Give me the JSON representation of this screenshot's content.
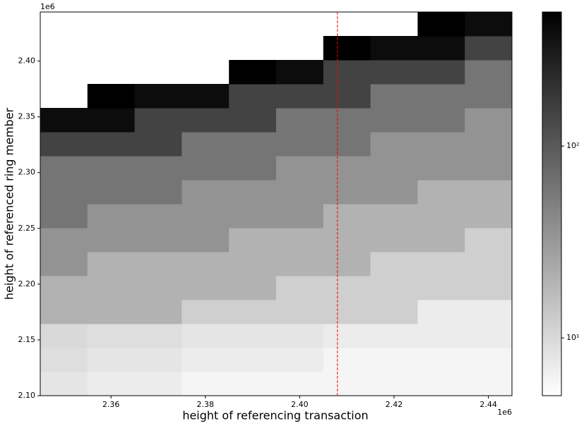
{
  "chart_data": {
    "type": "heatmap",
    "xlabel": "height of referencing transaction",
    "ylabel": "height of referenced ring member",
    "x_offset": "1e6",
    "y_offset": "1e6",
    "xlim": [
      2345000,
      2445000
    ],
    "ylim": [
      2100000,
      2444000
    ],
    "xticks": [
      {
        "value": 2360000,
        "label": "2.36"
      },
      {
        "value": 2380000,
        "label": "2.38"
      },
      {
        "value": 2400000,
        "label": "2.40"
      },
      {
        "value": 2420000,
        "label": "2.42"
      },
      {
        "value": 2440000,
        "label": "2.44"
      }
    ],
    "yticks": [
      {
        "value": 2100000,
        "label": "2.10"
      },
      {
        "value": 2150000,
        "label": "2.15"
      },
      {
        "value": 2200000,
        "label": "2.20"
      },
      {
        "value": 2250000,
        "label": "2.25"
      },
      {
        "value": 2300000,
        "label": "2.30"
      },
      {
        "value": 2350000,
        "label": "2.35"
      },
      {
        "value": 2400000,
        "label": "2.40"
      }
    ],
    "x_bins": [
      2345000,
      2355000,
      2365000,
      2375000,
      2385000,
      2395000,
      2405000,
      2415000,
      2425000,
      2435000,
      2445000
    ],
    "y_bins": [
      2100000,
      2121500,
      2143000,
      2164500,
      2186000,
      2207500,
      2229000,
      2250500,
      2272000,
      2293500,
      2315000,
      2336500,
      2358000,
      2379500,
      2401000,
      2422500,
      2444000
    ],
    "z": [
      [
        8,
        7,
        7,
        6,
        6,
        6,
        6,
        6,
        6,
        6
      ],
      [
        9,
        8,
        8,
        7,
        7,
        7,
        6,
        6,
        6,
        6
      ],
      [
        10,
        9,
        9,
        8,
        8,
        8,
        7,
        7,
        7,
        7
      ],
      [
        20,
        20,
        20,
        12,
        12,
        12,
        12,
        12,
        7,
        7
      ],
      [
        20,
        20,
        20,
        20,
        20,
        12,
        12,
        12,
        12,
        12
      ],
      [
        35,
        20,
        20,
        20,
        20,
        20,
        20,
        12,
        12,
        12
      ],
      [
        35,
        35,
        35,
        35,
        20,
        20,
        20,
        20,
        20,
        12
      ],
      [
        60,
        35,
        35,
        35,
        35,
        35,
        20,
        20,
        20,
        20
      ],
      [
        60,
        60,
        60,
        35,
        35,
        35,
        35,
        35,
        20,
        20
      ],
      [
        60,
        60,
        60,
        60,
        60,
        35,
        35,
        35,
        35,
        35
      ],
      [
        150,
        150,
        150,
        60,
        60,
        60,
        60,
        35,
        35,
        35
      ],
      [
        400,
        400,
        150,
        150,
        150,
        60,
        60,
        60,
        60,
        35
      ],
      [
        null,
        500,
        400,
        400,
        150,
        150,
        150,
        60,
        60,
        60
      ],
      [
        null,
        null,
        null,
        null,
        500,
        400,
        150,
        150,
        150,
        60
      ],
      [
        null,
        null,
        null,
        null,
        null,
        null,
        500,
        400,
        400,
        150
      ],
      [
        null,
        null,
        null,
        null,
        null,
        null,
        null,
        null,
        500,
        400
      ]
    ],
    "colorbar": {
      "scale": "log",
      "lim": [
        5,
        500
      ],
      "colors": [
        "#ffffff",
        "#000000"
      ],
      "ticks": [
        {
          "value": 10,
          "label": "10¹"
        },
        {
          "value": 100,
          "label": "10²"
        }
      ]
    },
    "vline": {
      "x": 2408000,
      "color": "#ff0000"
    }
  }
}
